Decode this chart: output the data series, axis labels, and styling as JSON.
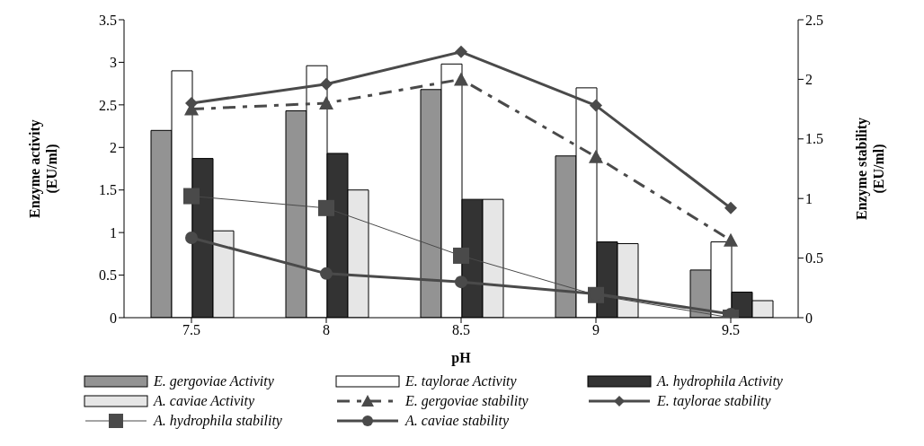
{
  "chart_data": {
    "type": "bar",
    "xlabel": "pH",
    "ylabel": "Enzyme activity (EU/ml)",
    "y2label": "Enzyme stability (EU/ml)",
    "categories": [
      "7.5",
      "8",
      "8.5",
      "9",
      "9.5"
    ],
    "ylim": [
      0,
      3.5
    ],
    "yticks": [
      0,
      0.5,
      1,
      1.5,
      2,
      2.5,
      3,
      3.5
    ],
    "y2lim": [
      0,
      2.5
    ],
    "y2ticks": [
      0,
      0.5,
      1,
      1.5,
      2,
      2.5
    ],
    "grid": false,
    "legend": "bottom",
    "series": [
      {
        "name": "E. gergoviae Activity",
        "color": "#939393",
        "values": [
          2.2,
          2.43,
          2.68,
          1.9,
          0.56
        ]
      },
      {
        "name": "E. taylorae Activity",
        "color": "#ffffff",
        "values": [
          2.9,
          2.96,
          2.98,
          2.7,
          0.89
        ]
      },
      {
        "name": "A. hydrophila Activity",
        "color": "#333333",
        "values": [
          1.87,
          1.93,
          1.39,
          0.89,
          0.3
        ]
      },
      {
        "name": "A. caviae Activity",
        "color": "#e6e6e6",
        "values": [
          1.02,
          1.5,
          1.39,
          0.87,
          0.2
        ]
      },
      {
        "name": "E. gergoviae stability",
        "type": "line",
        "axis": "y2",
        "color": "#4a4a4a",
        "marker": "triangle",
        "line_style": "dashed",
        "values": [
          1.75,
          1.8,
          2.0,
          1.35,
          0.65
        ]
      },
      {
        "name": "E. taylorae stability",
        "type": "line",
        "axis": "y2",
        "color": "#4a4a4a",
        "marker": "diamond",
        "line_style": "solid",
        "values": [
          1.8,
          1.96,
          2.23,
          1.78,
          0.92
        ]
      },
      {
        "name": "A. hydrophila stability",
        "type": "line",
        "axis": "y2",
        "color": "#4a4a4a",
        "marker": "square",
        "line_style": "solid",
        "values": [
          1.02,
          0.92,
          0.52,
          0.19,
          0.0
        ]
      },
      {
        "name": "A. caviae stability",
        "type": "line",
        "axis": "y2",
        "color": "#4a4a4a",
        "marker": "circle",
        "line_style": "solid",
        "values": [
          0.67,
          0.37,
          0.3,
          0.2,
          0.03
        ]
      }
    ]
  }
}
